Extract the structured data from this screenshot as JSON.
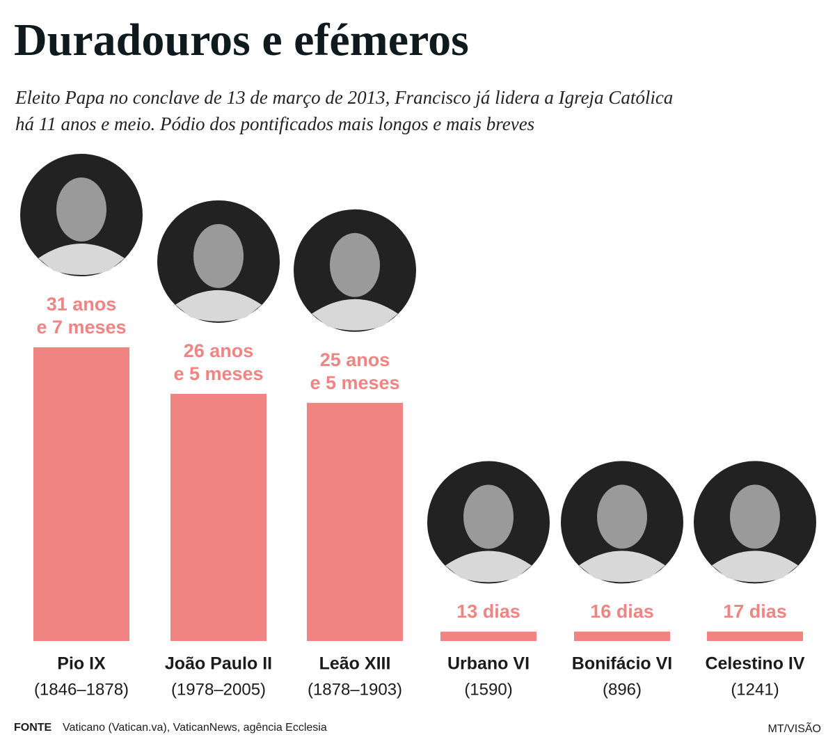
{
  "chart_data": {
    "type": "bar",
    "title": "Duradouros e efémeros",
    "subtitle": [
      "Eleito Papa no conclave de 13 de março de 2013, Francisco já lidera a Igreja Católica",
      "há 11 anos e meio. Pódio dos pontificados mais longos e mais breves"
    ],
    "categories": [
      "Pio IX",
      "João Paulo II",
      "Leão XIII",
      "Urbano VI",
      "Bonifácio VI",
      "Celestino IV"
    ],
    "periods": [
      "(1846–1878)",
      "(1978–2005)",
      "(1878–1903)",
      "(1590)",
      "(896)",
      "(1241)"
    ],
    "values": [
      31.58,
      26.42,
      25.42,
      0.0356,
      0.0438,
      0.0465
    ],
    "value_labels": [
      [
        "31 anos",
        "e 7 meses"
      ],
      [
        "26 anos",
        "e 5 meses"
      ],
      [
        "25 anos",
        "e 5 meses"
      ],
      [
        "13 dias"
      ],
      [
        "16 dias"
      ],
      [
        "17 dias"
      ]
    ],
    "color": "#f08482",
    "source_label": "FONTE",
    "source": "Vaticano (Vatican.va), VaticanNews, agência Ecclesia",
    "credit": "MT/VISÃO"
  }
}
